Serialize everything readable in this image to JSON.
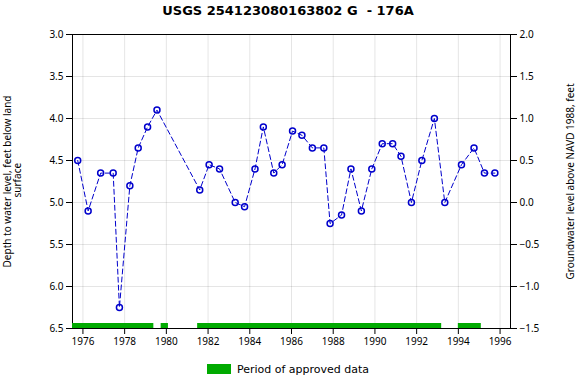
{
  "chart_data": {
    "type": "line",
    "title": "USGS 254123080163802 G  - 176A",
    "ylabel": "Depth to water level, feet below land\n surface",
    "y2label": "Groundwater level above NAVD 1988, feet",
    "x": [
      1975.75,
      1976.25,
      1976.85,
      1977.45,
      1977.75,
      1978.25,
      1978.65,
      1979.1,
      1979.55,
      1981.6,
      1982.05,
      1982.55,
      1983.3,
      1983.75,
      1984.25,
      1984.65,
      1985.15,
      1985.55,
      1986.05,
      1986.5,
      1987.0,
      1987.55,
      1987.85,
      1988.4,
      1988.85,
      1989.35,
      1989.85,
      1990.35,
      1990.85,
      1991.25,
      1991.75,
      1992.25,
      1992.85,
      1993.35,
      1994.15,
      1994.75,
      1995.25,
      1995.75
    ],
    "series": [
      {
        "color": "#0000CC",
        "marker": "o",
        "line_style": "dashed",
        "values": [
          4.5,
          5.1,
          4.65,
          4.65,
          6.25,
          4.8,
          4.35,
          4.1,
          3.9,
          4.85,
          4.55,
          4.6,
          5.0,
          5.05,
          4.6,
          4.1,
          4.65,
          4.55,
          4.15,
          4.2,
          4.35,
          4.35,
          5.25,
          5.15,
          4.6,
          5.1,
          4.6,
          4.3,
          4.3,
          4.45,
          5.0,
          4.5,
          4.0,
          5.0,
          4.55,
          4.35,
          4.65,
          4.65
        ]
      }
    ],
    "periods": {
      "name": "Period of approved data",
      "color": "#00AA00",
      "ranges": [
        [
          1975.5,
          1979.4
        ],
        [
          1979.75,
          1980.1
        ],
        [
          1981.5,
          1993.2
        ],
        [
          1994.0,
          1995.1
        ]
      ]
    },
    "xlim": [
      1975.5,
      1996.5
    ],
    "xticks": [
      1976,
      1978,
      1980,
      1982,
      1984,
      1986,
      1988,
      1990,
      1992,
      1994,
      1996
    ],
    "ylim": [
      6.5,
      3.0
    ],
    "yticks": [
      {
        "value": 3.0,
        "label": "3.0"
      },
      {
        "value": 3.5,
        "label": "3.5"
      },
      {
        "value": 4.0,
        "label": "4.0"
      },
      {
        "value": 4.5,
        "label": "4.5"
      },
      {
        "value": 5.0,
        "label": "5.0"
      },
      {
        "value": 5.5,
        "label": "5.5"
      },
      {
        "value": 6.0,
        "label": "6.0"
      },
      {
        "value": 6.5,
        "label": "6.5"
      }
    ],
    "y2lim": [
      -1.5,
      2.0
    ],
    "y2ticks": [
      {
        "value": 2.0,
        "label": "2.0"
      },
      {
        "value": 1.5,
        "label": "1.5"
      },
      {
        "value": 1.0,
        "label": "1.0"
      },
      {
        "value": 0.5,
        "label": "0.5"
      },
      {
        "value": 0.0,
        "label": "0.0"
      },
      {
        "value": -0.5,
        "label": "−0.5"
      },
      {
        "value": -1.0,
        "label": "−1.0"
      },
      {
        "value": -1.5,
        "label": "−1.5"
      }
    ],
    "grid": true
  }
}
